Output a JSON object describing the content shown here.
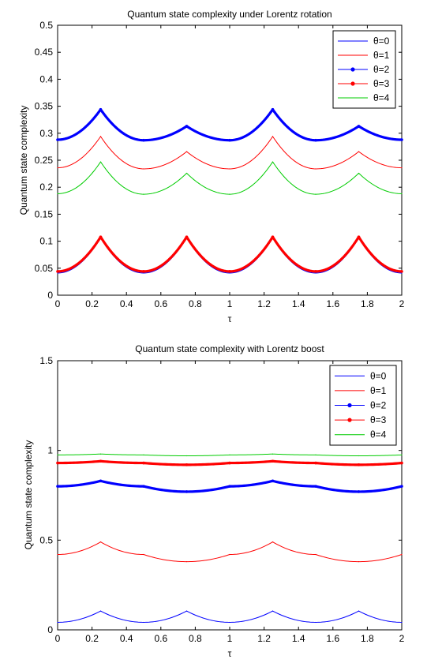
{
  "chart_data": [
    {
      "type": "line",
      "title": "Quantum state complexity under Lorentz rotation",
      "xlabel": "τ",
      "ylabel": "Quantum state complexity",
      "xlim": [
        0,
        2
      ],
      "ylim": [
        0,
        0.5
      ],
      "xticks": [
        "0",
        "0.2",
        "0.4",
        "0.6",
        "0.8",
        "1",
        "1.2",
        "1.4",
        "1.6",
        "1.8",
        "2"
      ],
      "yticks": [
        "0",
        "0.05",
        "0.1",
        "0.15",
        "0.2",
        "0.25",
        "0.3",
        "0.35",
        "0.4",
        "0.45",
        "0.5"
      ],
      "grid": false,
      "legend_position": "top-right",
      "series": [
        {
          "name": "θ=0",
          "color": "#0000ff",
          "marker": "none",
          "x": [
            0,
            0.25,
            0.5,
            0.75,
            1.0,
            1.25,
            1.5,
            1.75,
            2.0
          ],
          "values": [
            0.041,
            0.106,
            0.041,
            0.106,
            0.041,
            0.106,
            0.041,
            0.106,
            0.041
          ]
        },
        {
          "name": "θ=1",
          "color": "#ff0000",
          "marker": "none",
          "x": [
            0,
            0.25,
            0.5,
            0.75,
            1.0,
            1.25,
            1.5,
            1.75,
            2.0
          ],
          "values": [
            0.236,
            0.294,
            0.234,
            0.266,
            0.234,
            0.294,
            0.234,
            0.266,
            0.236
          ]
        },
        {
          "name": "θ=2",
          "color": "#0000ff",
          "marker": "dot",
          "x": [
            0,
            0.25,
            0.5,
            0.75,
            1.0,
            1.25,
            1.5,
            1.75,
            2.0
          ],
          "values": [
            0.288,
            0.344,
            0.287,
            0.313,
            0.287,
            0.344,
            0.287,
            0.313,
            0.288
          ]
        },
        {
          "name": "θ=3",
          "color": "#ff0000",
          "marker": "dot",
          "x": [
            0,
            0.25,
            0.5,
            0.75,
            1.0,
            1.25,
            1.5,
            1.75,
            2.0
          ],
          "values": [
            0.044,
            0.108,
            0.044,
            0.108,
            0.044,
            0.108,
            0.044,
            0.108,
            0.044
          ]
        },
        {
          "name": "θ=4",
          "color": "#00cc00",
          "marker": "none",
          "x": [
            0,
            0.25,
            0.5,
            0.75,
            1.0,
            1.25,
            1.5,
            1.75,
            2.0
          ],
          "values": [
            0.188,
            0.247,
            0.187,
            0.226,
            0.187,
            0.247,
            0.187,
            0.226,
            0.188
          ]
        }
      ]
    },
    {
      "type": "line",
      "title": "Quantum state complexity with Lorentz boost",
      "xlabel": "τ",
      "ylabel": "Quantum state complexity",
      "xlim": [
        0,
        2
      ],
      "ylim": [
        0,
        1.5
      ],
      "xticks": [
        "0",
        "0.2",
        "0.4",
        "0.6",
        "0.8",
        "1",
        "1.2",
        "1.4",
        "1.6",
        "1.8",
        "2"
      ],
      "yticks": [
        "0",
        "0.5",
        "1",
        "1.5"
      ],
      "grid": false,
      "legend_position": "top-right",
      "series": [
        {
          "name": "θ=0",
          "color": "#0000ff",
          "marker": "none",
          "x": [
            0,
            0.25,
            0.5,
            0.75,
            1.0,
            1.25,
            1.5,
            1.75,
            2.0
          ],
          "values": [
            0.042,
            0.105,
            0.042,
            0.105,
            0.042,
            0.105,
            0.042,
            0.105,
            0.042
          ]
        },
        {
          "name": "θ=1",
          "color": "#ff0000",
          "marker": "none",
          "x": [
            0,
            0.25,
            0.5,
            0.75,
            1.0,
            1.25,
            1.5,
            1.75,
            2.0
          ],
          "values": [
            0.42,
            0.49,
            0.42,
            0.38,
            0.42,
            0.49,
            0.42,
            0.38,
            0.42
          ]
        },
        {
          "name": "θ=2",
          "color": "#0000ff",
          "marker": "dot",
          "x": [
            0,
            0.25,
            0.5,
            0.75,
            1.0,
            1.25,
            1.5,
            1.75,
            2.0
          ],
          "values": [
            0.8,
            0.83,
            0.8,
            0.77,
            0.8,
            0.83,
            0.8,
            0.77,
            0.8
          ]
        },
        {
          "name": "θ=3",
          "color": "#ff0000",
          "marker": "dot",
          "x": [
            0,
            0.25,
            0.5,
            0.75,
            1.0,
            1.25,
            1.5,
            1.75,
            2.0
          ],
          "values": [
            0.93,
            0.94,
            0.93,
            0.92,
            0.93,
            0.94,
            0.93,
            0.92,
            0.93
          ]
        },
        {
          "name": "θ=4",
          "color": "#00cc00",
          "marker": "none",
          "x": [
            0,
            0.25,
            0.5,
            0.75,
            1.0,
            1.25,
            1.5,
            1.75,
            2.0
          ],
          "values": [
            0.975,
            0.98,
            0.975,
            0.97,
            0.975,
            0.98,
            0.975,
            0.97,
            0.975
          ]
        }
      ]
    }
  ]
}
